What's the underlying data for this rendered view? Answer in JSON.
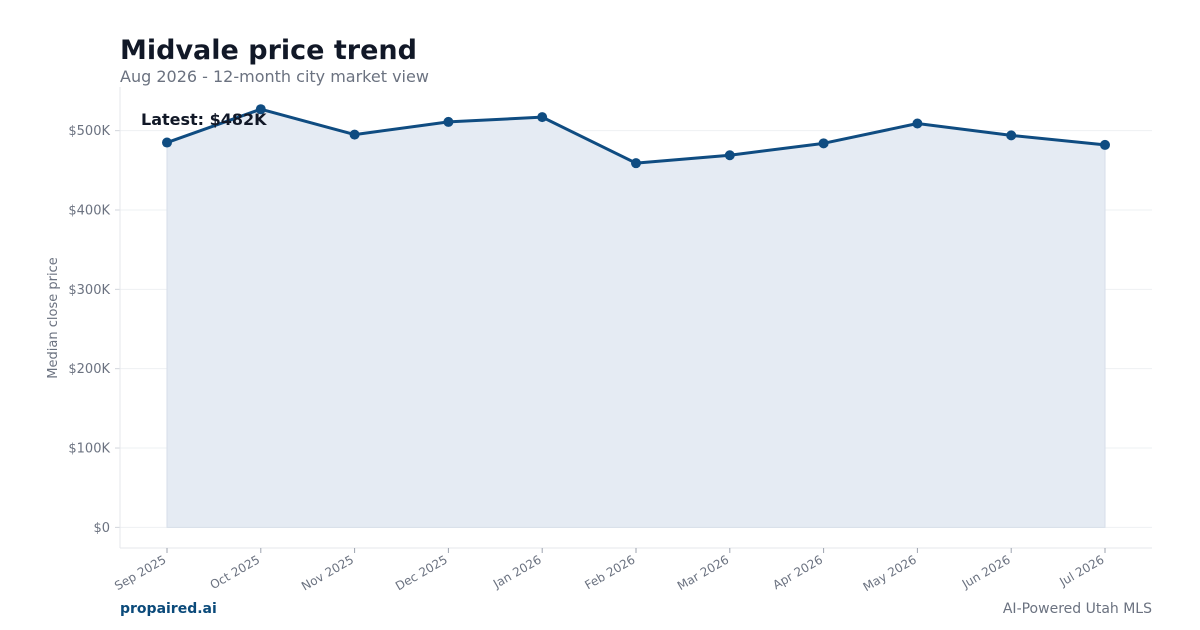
{
  "header": {
    "title": "Midvale price trend",
    "subtitle": "Aug 2026 - 12-month city market view"
  },
  "footer": {
    "brand": "propaired.ai",
    "tagline": "AI-Powered Utah MLS"
  },
  "annotation": {
    "latest_label": "Latest: $482K"
  },
  "colors": {
    "line": "#0f4c81",
    "area_fill": "#e5ebf3",
    "grid": "#eef0f3",
    "axis_text": "#6b7280",
    "title": "#111827",
    "brand": "#0b4a7a"
  },
  "chart_data": {
    "type": "line",
    "title": "Midvale price trend",
    "subtitle": "Aug 2026 - 12-month city market view",
    "xlabel": "",
    "ylabel": "Median close price",
    "categories": [
      "Sep 2025",
      "Oct 2025",
      "Nov 2025",
      "Dec 2025",
      "Jan 2026",
      "Feb 2026",
      "Mar 2026",
      "Apr 2026",
      "May 2026",
      "Jun 2026",
      "Jul 2026"
    ],
    "series": [
      {
        "values": [
          485000,
          527000,
          495000,
          511000,
          517000,
          459000,
          469000,
          484000,
          509000,
          494000,
          482000
        ]
      }
    ],
    "ylim": [
      -26000,
      555000
    ],
    "y_ticks": [
      0,
      100000,
      200000,
      300000,
      400000,
      500000
    ],
    "y_tick_labels": [
      "$0",
      "$100K",
      "$200K",
      "$300K",
      "$400K",
      "$500K"
    ],
    "area_fill": true,
    "markers": true,
    "grid": "horizontal",
    "legend": "none"
  }
}
